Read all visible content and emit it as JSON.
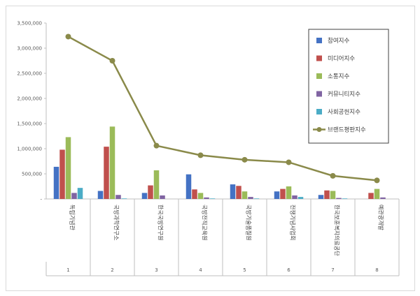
{
  "chart_data": {
    "type": "bar",
    "categories": [
      "독립기념관",
      "국방과학연구소",
      "한국국방연구원",
      "국방전직교육원",
      "국방기술품질원",
      "전쟁기념사업회",
      "한국보훈복지의료공단",
      "예관광개발"
    ],
    "x_numbers": [
      "1",
      "2",
      "3",
      "4",
      "5",
      "6",
      "7",
      "8"
    ],
    "ylim": [
      0,
      3500000
    ],
    "yticks": [
      "-",
      "500,000",
      "1,000,000",
      "1,500,000",
      "2,000,000",
      "2,500,000",
      "3,000,000",
      "3,500,000"
    ],
    "ytick_values": [
      0,
      500000,
      1000000,
      1500000,
      2000000,
      2500000,
      3000000,
      3500000
    ],
    "series": [
      {
        "name": "참여지수",
        "kind": "bar",
        "color": "#4472C4",
        "values": [
          640000,
          160000,
          120000,
          490000,
          290000,
          150000,
          80000,
          0
        ]
      },
      {
        "name": "미디어지수",
        "kind": "bar",
        "color": "#C0504D",
        "values": [
          980000,
          1040000,
          270000,
          190000,
          260000,
          200000,
          170000,
          120000
        ]
      },
      {
        "name": "소통지수",
        "kind": "bar",
        "color": "#9BBB59",
        "values": [
          1230000,
          1440000,
          570000,
          120000,
          150000,
          250000,
          160000,
          200000
        ]
      },
      {
        "name": "커뮤니티지수",
        "kind": "bar",
        "color": "#8064A2",
        "values": [
          120000,
          80000,
          70000,
          30000,
          40000,
          70000,
          20000,
          30000
        ]
      },
      {
        "name": "사회공헌지수",
        "kind": "bar",
        "color": "#4BACC6",
        "values": [
          220000,
          10000,
          0,
          10000,
          10000,
          40000,
          10000,
          0
        ]
      },
      {
        "name": "브랜드평판지수",
        "kind": "line",
        "color": "#8A8A4A",
        "values": [
          3230000,
          2750000,
          1060000,
          870000,
          780000,
          730000,
          460000,
          370000
        ]
      }
    ],
    "legend": "right",
    "grid": false
  }
}
